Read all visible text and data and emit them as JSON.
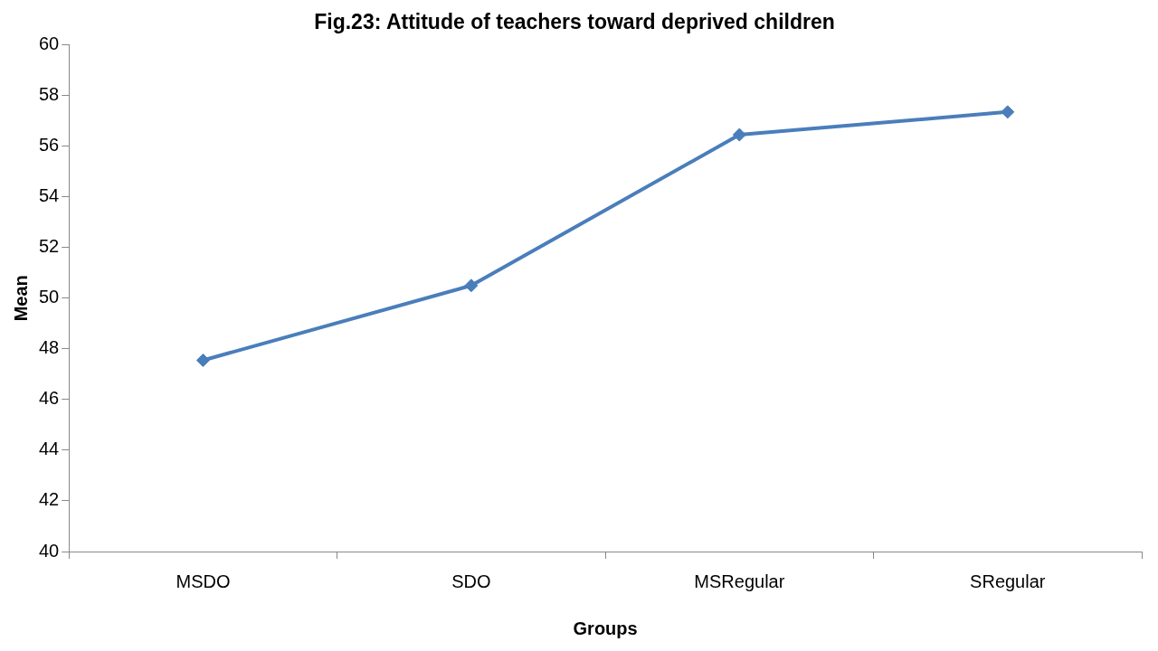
{
  "chart_data": {
    "type": "line",
    "title": "Fig.23: Attitude of teachers toward deprived children",
    "xlabel": "Groups",
    "ylabel": "Mean",
    "categories": [
      "MSDO",
      "SDO",
      "MSRegular",
      "SRegular"
    ],
    "series": [
      {
        "color": "#4a7ebb",
        "values": [
          47.55,
          50.5,
          56.45,
          57.35
        ]
      }
    ],
    "ylim": [
      40,
      60
    ],
    "yticks": [
      40,
      42,
      44,
      46,
      48,
      50,
      52,
      54,
      56,
      58,
      60
    ],
    "grid": false,
    "legend": false,
    "marker": "diamond",
    "line_style": "solid"
  }
}
